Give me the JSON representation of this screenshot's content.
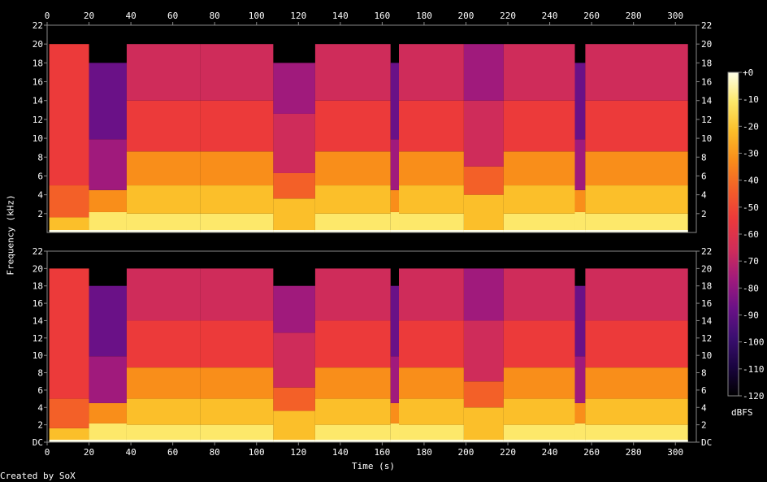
{
  "chart_data": {
    "type": "heatmap",
    "subtype": "spectrogram",
    "channels": 2,
    "xlabel": "Time (s)",
    "ylabel": "Frequency (kHz)",
    "colorbar_label": "dBFS",
    "credit": "Created by SoX",
    "xlim": [
      0,
      310
    ],
    "x_ticks": [
      "0",
      "20",
      "40",
      "60",
      "80",
      "100",
      "120",
      "140",
      "160",
      "180",
      "200",
      "220",
      "240",
      "260",
      "280",
      "300"
    ],
    "x_tick_values": [
      0,
      20,
      40,
      60,
      80,
      100,
      120,
      140,
      160,
      180,
      200,
      220,
      240,
      260,
      280,
      300
    ],
    "ylim_khz": [
      0,
      22
    ],
    "y_ticks_top": [
      "22",
      "20",
      "18",
      "16",
      "14",
      "12",
      "10",
      "8",
      "6",
      "4",
      "2"
    ],
    "y_ticks_bottom": [
      "22",
      "20",
      "18",
      "16",
      "14",
      "12",
      "10",
      "8",
      "6",
      "4",
      "2",
      "DC"
    ],
    "y_tick_values": [
      22,
      20,
      18,
      16,
      14,
      12,
      10,
      8,
      6,
      4,
      2,
      0
    ],
    "colorbar_ticks": [
      "+0",
      "-10",
      "-20",
      "-30",
      "-40",
      "-50",
      "-60",
      "-70",
      "-80",
      "-90",
      "-100",
      "-110",
      "-120"
    ],
    "colorbar_values": [
      0,
      -10,
      -20,
      -30,
      -40,
      -50,
      -60,
      -70,
      -80,
      -90,
      -100,
      -110,
      -120
    ],
    "colormap": [
      "#000000",
      "#1a0440",
      "#3b0f70",
      "#6a1187",
      "#a01a7c",
      "#cf2c5a",
      "#ec3a3a",
      "#f36028",
      "#f98e1a",
      "#fbbf2a",
      "#fde86a",
      "#ffffe8"
    ],
    "segments": [
      {
        "t0": 0,
        "t1": 1,
        "cutoff_khz": 0,
        "level": "silence"
      },
      {
        "t0": 1,
        "t1": 20,
        "cutoff_khz": 20,
        "level": "quiet"
      },
      {
        "t0": 20,
        "t1": 38,
        "cutoff_khz": 18,
        "level": "medium-low"
      },
      {
        "t0": 38,
        "t1": 73,
        "cutoff_khz": 20,
        "level": "loud"
      },
      {
        "t0": 73,
        "t1": 108,
        "cutoff_khz": 20,
        "level": "loud"
      },
      {
        "t0": 108,
        "t1": 128,
        "cutoff_khz": 18,
        "level": "medium"
      },
      {
        "t0": 128,
        "t1": 164,
        "cutoff_khz": 20,
        "level": "loud"
      },
      {
        "t0": 164,
        "t1": 168,
        "cutoff_khz": 18,
        "level": "medium-low"
      },
      {
        "t0": 168,
        "t1": 199,
        "cutoff_khz": 20,
        "level": "loud"
      },
      {
        "t0": 199,
        "t1": 218,
        "cutoff_khz": 20,
        "level": "medium"
      },
      {
        "t0": 218,
        "t1": 252,
        "cutoff_khz": 20,
        "level": "loud"
      },
      {
        "t0": 252,
        "t1": 257,
        "cutoff_khz": 18,
        "level": "medium-low"
      },
      {
        "t0": 257,
        "t1": 306,
        "cutoff_khz": 20,
        "level": "loud"
      },
      {
        "t0": 306,
        "t1": 310,
        "cutoff_khz": 0,
        "level": "silence"
      }
    ]
  }
}
